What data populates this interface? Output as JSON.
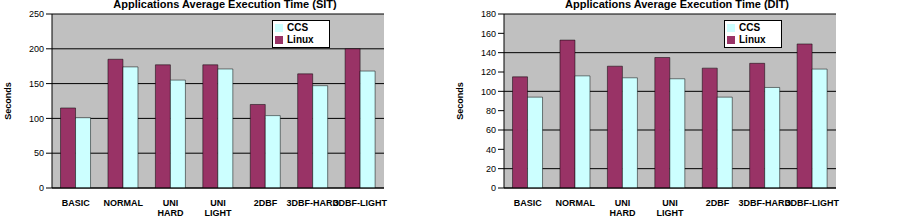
{
  "chart_data": [
    {
      "type": "bar",
      "title": "Applications Average Execution Time (SIT)",
      "y_label": "Seconds",
      "categories": [
        "BASIC",
        "NORMAL",
        "UNI HARD",
        "UNI LIGHT",
        "2DBF",
        "3DBF-HARD",
        "3DBF-LIGHT"
      ],
      "series": [
        {
          "name": "Linux",
          "color": "#993366",
          "values": [
            115,
            185,
            177,
            177,
            120,
            164,
            200
          ]
        },
        {
          "name": "CCS",
          "color": "#ccffff",
          "values": [
            101,
            174,
            155,
            171,
            104,
            147,
            168
          ]
        }
      ],
      "ylim": [
        0,
        250
      ],
      "yticks": [
        0,
        50,
        100,
        150,
        200,
        250
      ],
      "grid": true,
      "legend": "upper right"
    },
    {
      "type": "bar",
      "title": "Applications Average Execution Time (DIT)",
      "y_label": "Seconds",
      "categories": [
        "BASIC",
        "NORMAL",
        "UNI HARD",
        "UNI LIGHT",
        "2DBF",
        "3DBF-HARD",
        "3DBF-LIGHT"
      ],
      "series": [
        {
          "name": "Linux",
          "color": "#993366",
          "values": [
            115,
            153,
            126,
            135,
            124,
            129,
            149
          ]
        },
        {
          "name": "CCS",
          "color": "#ccffff",
          "values": [
            94,
            116,
            114,
            113,
            94,
            104,
            123
          ]
        }
      ],
      "ylim": [
        0,
        180
      ],
      "yticks": [
        0,
        20,
        40,
        60,
        80,
        100,
        120,
        140,
        160,
        180
      ],
      "grid": true,
      "legend": "upper right"
    }
  ]
}
